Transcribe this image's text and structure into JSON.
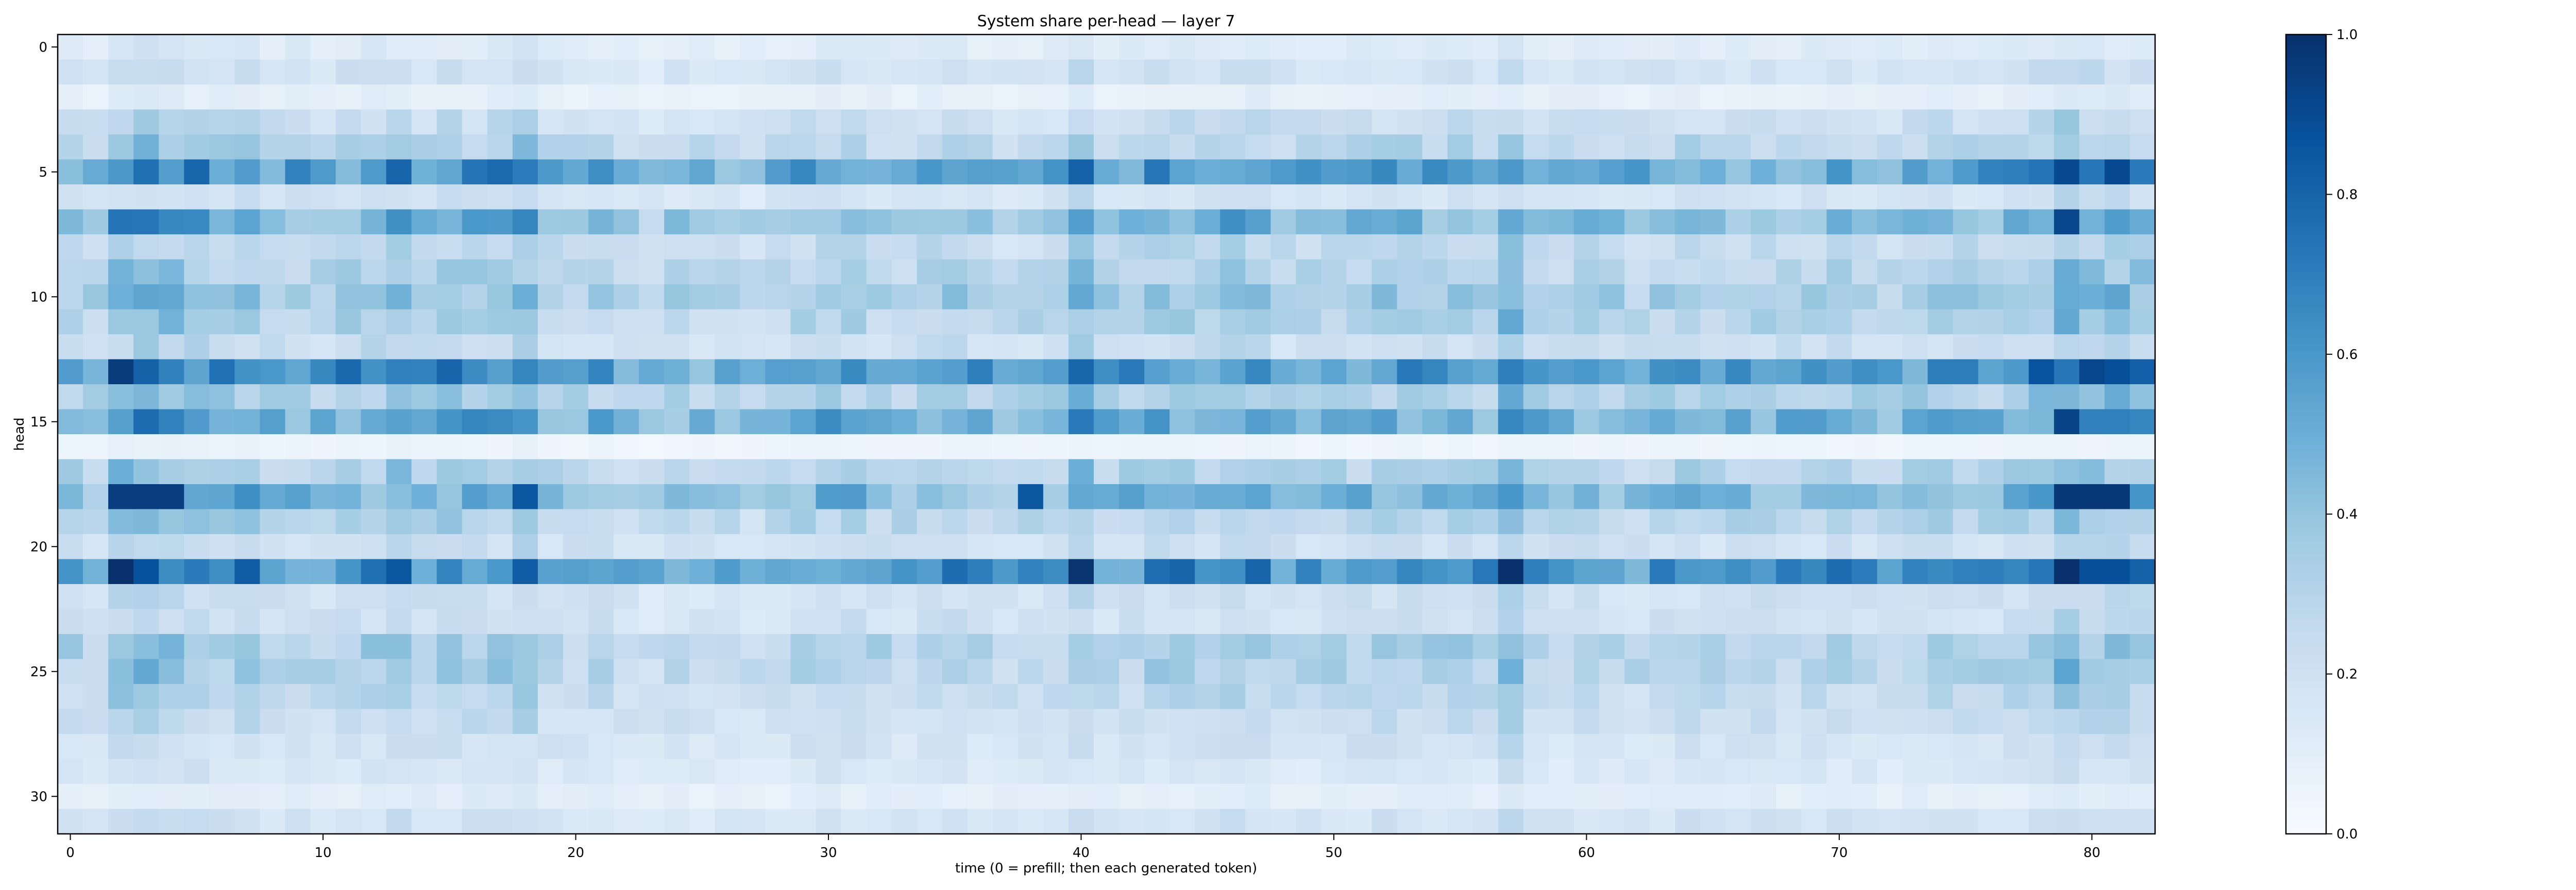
{
  "chart_data": {
    "type": "heatmap",
    "title": "System share per-head — layer 7",
    "xlabel": "time (0 = prefill; then each generated token)",
    "ylabel": "head",
    "x_range": [
      0,
      82
    ],
    "y_range": [
      0,
      31
    ],
    "x_ticks": [
      0,
      10,
      20,
      30,
      40,
      50,
      60,
      70,
      80
    ],
    "y_ticks": [
      0,
      5,
      10,
      15,
      20,
      25,
      30
    ],
    "colormap": "Blues",
    "colorbar": {
      "range": [
        0.0,
        1.0
      ],
      "ticks": [
        "0.0",
        "0.2",
        "0.4",
        "0.6",
        "0.8",
        "1.0"
      ]
    },
    "head_profile": [
      0.12,
      0.18,
      0.09,
      0.22,
      0.28,
      0.55,
      0.18,
      0.45,
      0.25,
      0.3,
      0.35,
      0.3,
      0.22,
      0.6,
      0.32,
      0.5,
      0.05,
      0.3,
      0.45,
      0.3,
      0.2,
      0.62,
      0.2,
      0.2,
      0.32,
      0.3,
      0.25,
      0.22,
      0.18,
      0.15,
      0.1,
      0.18
    ],
    "time_profile": [
      1.0,
      0.9,
      1.35,
      1.4,
      1.35,
      1.2,
      1.1,
      1.15,
      1.0,
      1.0,
      0.95,
      1.05,
      1.1,
      1.25,
      1.05,
      1.15,
      1.1,
      1.15,
      1.3,
      0.95,
      0.9,
      1.0,
      0.85,
      0.75,
      0.9,
      0.85,
      0.85,
      0.8,
      0.85,
      1.0,
      1.05,
      1.05,
      0.95,
      0.9,
      1.0,
      1.05,
      0.95,
      0.85,
      0.9,
      0.95,
      1.35,
      0.95,
      1.0,
      1.1,
      1.05,
      1.0,
      1.15,
      1.1,
      0.95,
      0.95,
      1.0,
      1.0,
      1.05,
      1.05,
      1.0,
      1.05,
      1.0,
      1.45,
      1.0,
      0.95,
      1.0,
      0.95,
      0.9,
      0.95,
      1.05,
      0.95,
      0.95,
      1.0,
      0.95,
      0.95,
      1.0,
      0.95,
      0.9,
      1.0,
      1.05,
      1.0,
      1.0,
      1.05,
      1.2,
      1.5,
      1.25,
      1.3,
      1.2
    ],
    "notable_cells": [
      {
        "head": 18,
        "t": [
          2,
          3,
          4
        ],
        "value": 0.95
      },
      {
        "head": 18,
        "t": [
          79,
          80,
          81
        ],
        "value": 0.97
      },
      {
        "head": 18,
        "t": [
          18,
          38
        ],
        "value": 0.85
      },
      {
        "head": 5,
        "t": [
          79,
          81
        ],
        "value": 0.9
      },
      {
        "head": 7,
        "t": [
          79
        ],
        "value": 0.92
      },
      {
        "head": 21,
        "t": [
          81
        ],
        "value": 0.88
      }
    ]
  }
}
